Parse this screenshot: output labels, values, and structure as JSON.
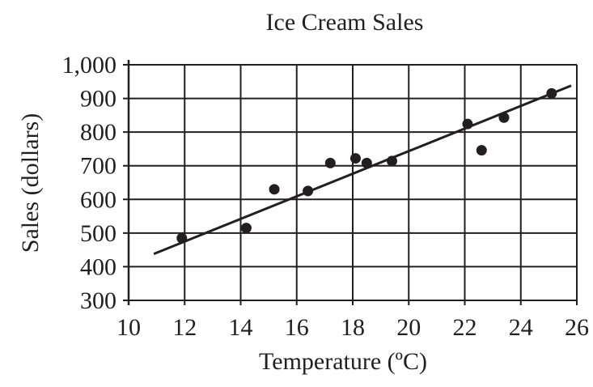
{
  "chart_data": {
    "type": "scatter",
    "title": "Ice Cream Sales",
    "xlabel": "Temperature (ºC)",
    "ylabel": "Sales (dollars)",
    "xlim": [
      10,
      26
    ],
    "ylim": [
      300,
      1000
    ],
    "x_ticks": [
      10,
      12,
      14,
      16,
      18,
      20,
      22,
      24,
      26
    ],
    "y_ticks": [
      300,
      400,
      500,
      600,
      700,
      800,
      900,
      1000
    ],
    "x_tick_labels": [
      "10",
      "12",
      "14",
      "16",
      "18",
      "20",
      "22",
      "24",
      "26"
    ],
    "y_tick_labels": [
      "300",
      "400",
      "500",
      "600",
      "700",
      "800",
      "900",
      "1,000"
    ],
    "grid": true,
    "points": [
      {
        "x": 11.9,
        "y": 485
      },
      {
        "x": 14.2,
        "y": 515
      },
      {
        "x": 15.2,
        "y": 630
      },
      {
        "x": 16.4,
        "y": 625
      },
      {
        "x": 17.2,
        "y": 708
      },
      {
        "x": 18.1,
        "y": 722
      },
      {
        "x": 18.5,
        "y": 708
      },
      {
        "x": 19.4,
        "y": 714
      },
      {
        "x": 22.1,
        "y": 824
      },
      {
        "x": 22.6,
        "y": 746
      },
      {
        "x": 23.4,
        "y": 843
      },
      {
        "x": 25.1,
        "y": 915
      }
    ],
    "trend_line": {
      "x": [
        10.9,
        25.8
      ],
      "y": [
        438,
        938
      ]
    },
    "colors": {
      "ink": "#231f20",
      "grid": "#231f20",
      "background": "#ffffff"
    }
  }
}
